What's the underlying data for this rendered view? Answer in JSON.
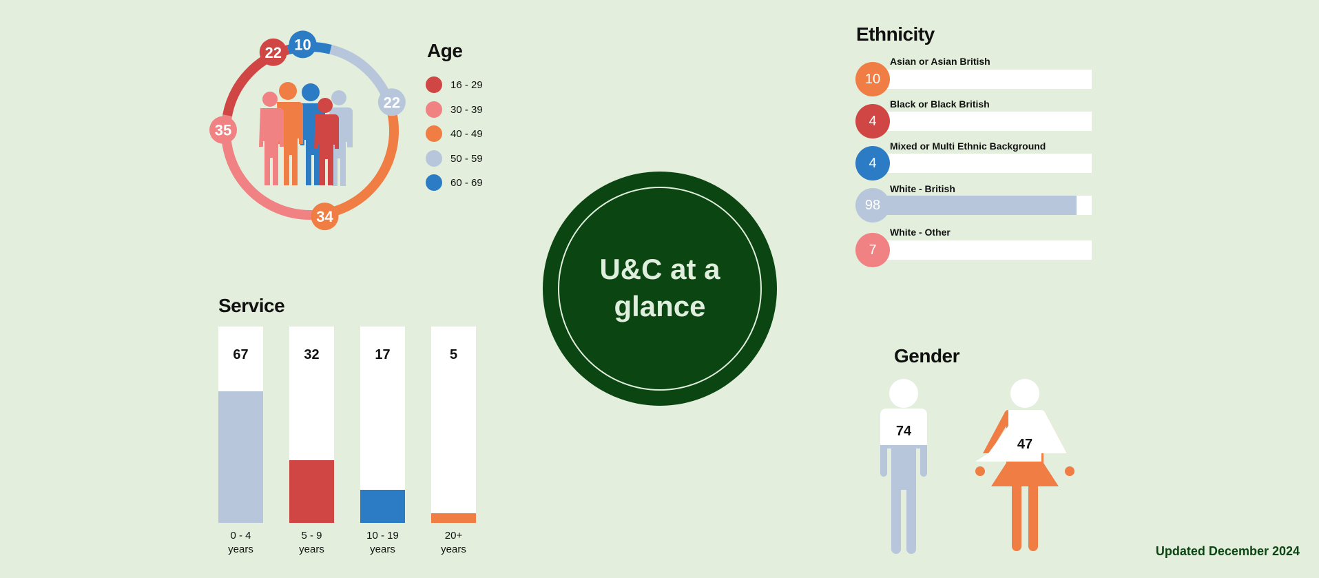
{
  "colors": {
    "background": "#e3efdc",
    "red": "#cf4644",
    "pink": "#f08283",
    "orange": "#f07d43",
    "light_blue": "#b8c6dc",
    "blue": "#2b7cc4",
    "dark_green": "#0b4512",
    "white": "#ffffff"
  },
  "center_title": {
    "line1": "U&C at a",
    "line2": "glance"
  },
  "updated_text": "Updated December 2024",
  "chart_data": [
    {
      "type": "pie",
      "title": "Age",
      "categories": [
        "16 - 29",
        "30 - 39",
        "40 - 49",
        "50 - 59",
        "60 - 69"
      ],
      "values": [
        22,
        35,
        34,
        22,
        10
      ],
      "colors": [
        "#cf4644",
        "#f08283",
        "#f07d43",
        "#b8c6dc",
        "#2b7cc4"
      ],
      "style": "donut ring with value badges, people icon in center",
      "legend": "right"
    },
    {
      "type": "bar",
      "title": "Service",
      "categories": [
        "0 - 4 years",
        "5 - 9 years",
        "10 - 19 years",
        "20+ years"
      ],
      "category_lines": [
        [
          "0 - 4",
          "years"
        ],
        [
          "5 - 9",
          "years"
        ],
        [
          "10 - 19",
          "years"
        ],
        [
          "20+",
          "years"
        ]
      ],
      "values": [
        67,
        32,
        17,
        5
      ],
      "colors": [
        "#b8c6dc",
        "#cf4644",
        "#2b7cc4",
        "#f07d43"
      ],
      "ylim": [
        0,
        100
      ],
      "orientation": "vertical"
    },
    {
      "type": "bar",
      "title": "Ethnicity",
      "categories": [
        "Asian or Asian British",
        "Black or Black British",
        "Mixed or Multi Ethnic Background",
        "White - British",
        "White - Other"
      ],
      "values": [
        10,
        4,
        4,
        98,
        7
      ],
      "colors": [
        "#f07d43",
        "#cf4644",
        "#2b7cc4",
        "#b8c6dc",
        "#f08283"
      ],
      "xlim": [
        0,
        105
      ],
      "orientation": "horizontal"
    },
    {
      "type": "bar",
      "title": "Gender",
      "categories": [
        "Male",
        "Female"
      ],
      "values": [
        74,
        47
      ],
      "colors": [
        "#b8c6dc",
        "#f07d43"
      ],
      "style": "person pictograms"
    }
  ]
}
